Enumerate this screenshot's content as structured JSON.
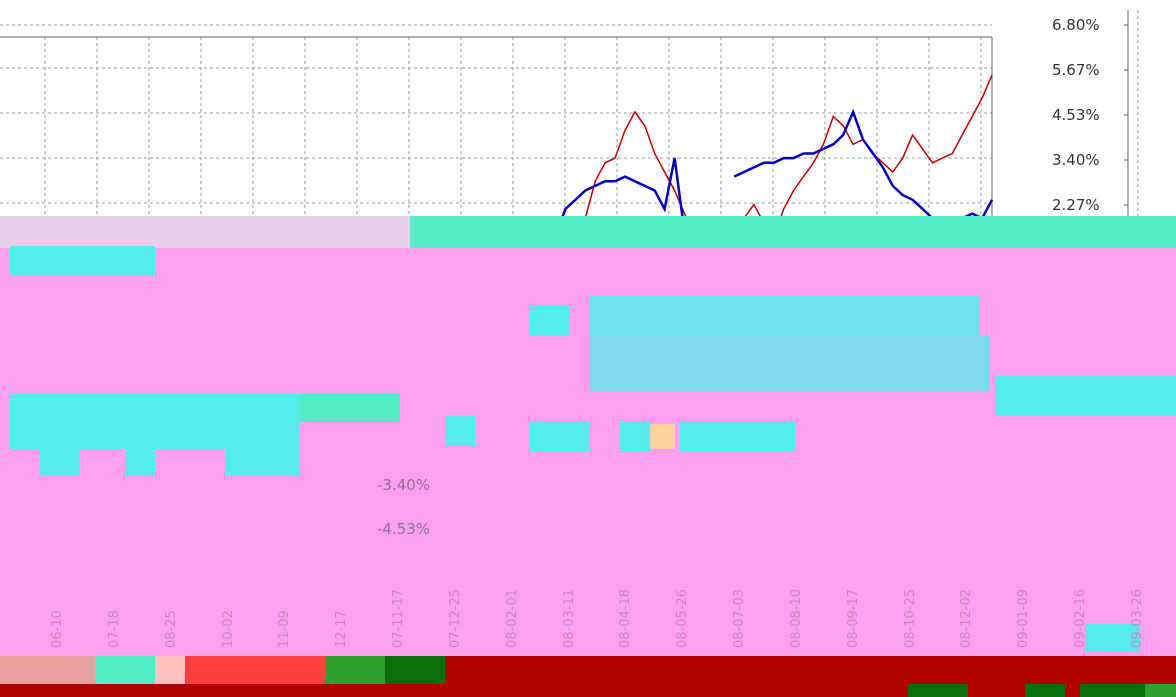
{
  "chart_data": {
    "type": "line",
    "title": "",
    "xlabel": "",
    "ylabel": "",
    "y_right_ticks": [
      "6.80%",
      "5.67%",
      "4.53%",
      "3.40%",
      "2.27%"
    ],
    "ylim": [
      2.0,
      6.8
    ],
    "grid": true,
    "x": [
      0,
      1,
      2,
      3,
      4,
      5,
      6,
      7,
      8,
      9,
      10,
      11,
      12,
      13,
      14,
      15,
      16,
      17,
      18,
      19,
      20,
      21,
      22,
      23,
      24,
      25,
      26,
      27,
      28,
      29,
      30,
      31,
      32,
      33,
      34,
      35,
      36,
      37,
      38,
      39,
      40,
      41,
      42,
      43,
      44,
      45,
      46,
      47,
      48,
      49,
      50,
      51,
      52,
      53,
      54,
      55,
      56,
      57,
      58,
      59,
      60,
      61,
      62,
      63,
      64,
      65,
      66,
      67,
      68,
      69,
      70,
      71,
      72,
      73,
      74,
      75,
      76,
      77,
      78,
      79,
      80,
      81,
      82,
      83,
      84,
      85,
      86,
      87,
      88,
      89,
      90,
      91,
      92,
      93,
      94,
      95,
      96,
      97,
      98,
      99,
      100
    ],
    "series": [
      {
        "color": "#c00000",
        "values": [
          null,
          null,
          null,
          null,
          null,
          null,
          null,
          null,
          null,
          null,
          null,
          null,
          null,
          null,
          null,
          null,
          null,
          null,
          null,
          null,
          null,
          null,
          null,
          null,
          null,
          null,
          null,
          null,
          null,
          null,
          null,
          null,
          null,
          null,
          null,
          null,
          null,
          null,
          null,
          null,
          null,
          null,
          null,
          null,
          null,
          null,
          null,
          null,
          null,
          null,
          null,
          null,
          null,
          null,
          null,
          null,
          null,
          null,
          2.1,
          2.6,
          3.4,
          3.8,
          3.9,
          4.5,
          4.9,
          4.6,
          4.0,
          3.6,
          3.2,
          2.7,
          2.2,
          2.4,
          2.1,
          null,
          null,
          2.6,
          2.9,
          2.5,
          2.2,
          2.8,
          3.2,
          3.5,
          3.8,
          4.2,
          4.8,
          4.6,
          4.2,
          4.3,
          4.0,
          3.8,
          3.6,
          3.9,
          4.4,
          4.1,
          3.8,
          3.9,
          4.0,
          4.4,
          4.8,
          5.2,
          5.7
        ]
      },
      {
        "color": "#0000c0",
        "values": [
          null,
          null,
          null,
          null,
          null,
          null,
          null,
          null,
          null,
          null,
          null,
          null,
          null,
          null,
          null,
          null,
          null,
          null,
          null,
          null,
          null,
          null,
          null,
          null,
          null,
          null,
          null,
          null,
          null,
          null,
          null,
          null,
          null,
          null,
          null,
          null,
          null,
          null,
          null,
          null,
          null,
          null,
          null,
          null,
          null,
          null,
          null,
          null,
          null,
          null,
          null,
          null,
          null,
          null,
          null,
          null,
          2.2,
          2.8,
          3.0,
          3.2,
          3.3,
          3.4,
          3.4,
          3.5,
          3.4,
          3.3,
          3.2,
          2.8,
          3.9,
          2.3,
          2.1,
          2.5,
          null,
          null,
          3.5,
          3.6,
          3.7,
          3.8,
          3.8,
          3.9,
          3.9,
          4.0,
          4.0,
          4.1,
          4.2,
          4.4,
          4.9,
          4.3,
          4.0,
          3.7,
          3.3,
          3.1,
          3.0,
          2.8,
          2.6,
          2.6,
          2.5,
          2.6,
          2.7,
          2.6,
          3.0
        ]
      }
    ],
    "lower_axis_labels": [
      "-3.40%",
      "-4.53%"
    ],
    "date_labels": [
      "06-10",
      "07-18",
      "08-25",
      "10-02",
      "11-09",
      "12-17",
      "07-11-17",
      "07-12-25",
      "08-02-01",
      "08-03-11",
      "08-04-18",
      "08-05-26",
      "08-07-03",
      "08-08-10",
      "08-09-17",
      "08-10-25",
      "08-12-02",
      "09-01-09",
      "09-02-16",
      "09-03-26"
    ]
  }
}
